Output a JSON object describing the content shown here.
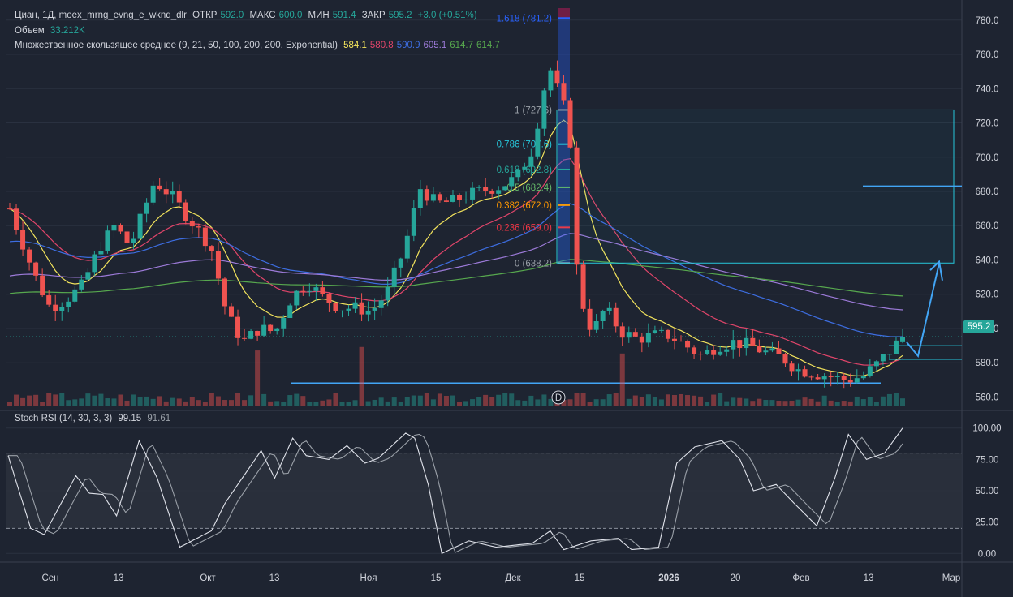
{
  "header": {
    "symbol": "Циан, 1Д, moex_mrng_evng_e_wknd_dlr",
    "open_label": "ОТКР",
    "open": "592.0",
    "high_label": "МАКС",
    "high": "600.0",
    "low_label": "МИН",
    "low": "591.4",
    "close_label": "ЗАКР",
    "close": "595.2",
    "change": "+3.0 (+0.51%)"
  },
  "volume_legend": {
    "label": "Объем",
    "value": "33.212K"
  },
  "ma_legend": {
    "label": "Множественное скользящее среднее (9, 21, 50, 100, 200, 200, Exponential)",
    "values": [
      {
        "v": "584.1",
        "color": "#f2e35c"
      },
      {
        "v": "580.8",
        "color": "#e0456a"
      },
      {
        "v": "590.9",
        "color": "#3d6de0"
      },
      {
        "v": "605.1",
        "color": "#9c7ad8"
      },
      {
        "v": "614.7",
        "color": "#57a84e"
      },
      {
        "v": "614.7",
        "color": "#57a84e"
      }
    ]
  },
  "stoch_legend": {
    "label": "Stoch RSI (14, 30, 3, 3)",
    "k": "99.15",
    "d": "91.61"
  },
  "last_price": "595.2",
  "chart_data": {
    "type": "candlestick",
    "price_axis": {
      "ticks": [
        "780.0",
        "760.0",
        "740.0",
        "720.0",
        "700.0",
        "680.0",
        "660.0",
        "640.0",
        "620.0",
        "600.0",
        "580.0",
        "560.0"
      ],
      "ylim": [
        555,
        787
      ]
    },
    "stoch_axis": {
      "ticks": [
        "100.00",
        "75.00",
        "50.00",
        "25.00",
        "0.00"
      ],
      "ylim": [
        -5,
        105
      ],
      "band": [
        20,
        80
      ]
    },
    "time_axis": {
      "labels": [
        "Сен",
        "13",
        "Окт",
        "13",
        "Ноя",
        "15",
        "Дек",
        "15",
        "2026",
        "20",
        "Фев",
        "13",
        "Мар"
      ]
    },
    "fib_levels": [
      {
        "label": "1.618 (781.2)",
        "price": 781.2,
        "color": "#2962ff"
      },
      {
        "label": "1 (727.6)",
        "price": 727.6,
        "color": "#9aa0a8"
      },
      {
        "label": "0.786 (707.6)",
        "price": 707.6,
        "color": "#26c6da"
      },
      {
        "label": "0.618 (692.8)",
        "price": 692.8,
        "color": "#26a69a"
      },
      {
        "label": "0.5 (682.4)",
        "price": 682.4,
        "color": "#66bb6a"
      },
      {
        "label": "0.382 (672.0)",
        "price": 672.0,
        "color": "#ff9800"
      },
      {
        "label": "0.236 (659.0)",
        "price": 659.0,
        "color": "#f23645"
      },
      {
        "label": "0 (638.2)",
        "price": 638.2,
        "color": "#9aa0a8"
      }
    ],
    "ma_series_names": [
      "EMA 9",
      "EMA 21",
      "EMA 50",
      "EMA 100",
      "EMA 200"
    ],
    "colors": {
      "up": "#26a69a",
      "down": "#ef5350",
      "ema9": "#f2e35c",
      "ema21": "#e0456a",
      "ema50": "#3d6de0",
      "ema100": "#9c7ad8",
      "ema200": "#57a84e"
    }
  }
}
